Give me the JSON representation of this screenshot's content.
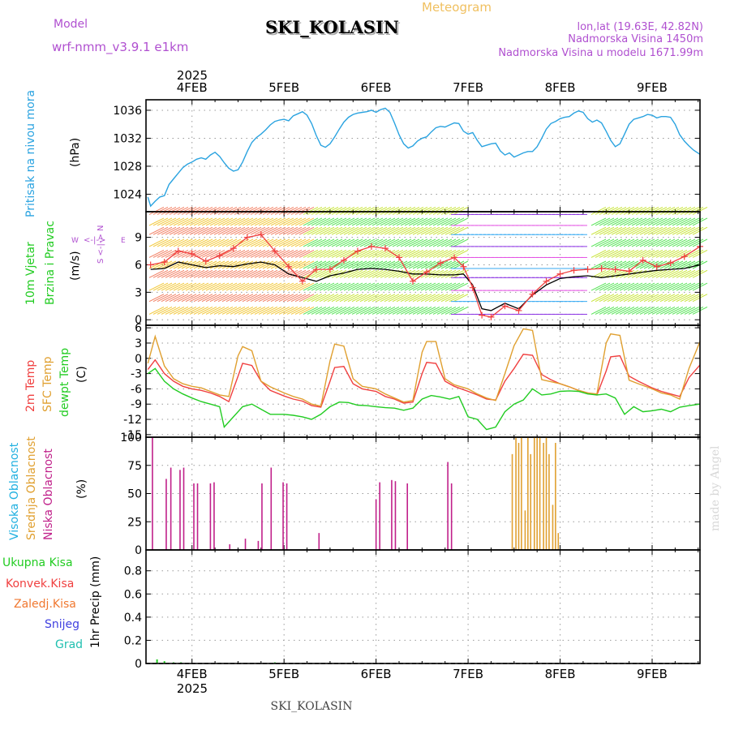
{
  "header": {
    "model_label": "Model",
    "model_name": "wrf-nmm_v3.9.1 e1km",
    "meteogram_label": "Meteogram",
    "station": "SKI_KOLASIN",
    "lonlat": "lon,lat (19.63E, 42.82N)",
    "altitude": "Nadmorska Visina 1450m",
    "model_altitude": "Nadmorska Visina u modelu 1671.99m"
  },
  "footer": {
    "credit": "made by Angel"
  },
  "axis": {
    "year": "2025",
    "dates": [
      "4FEB",
      "5FEB",
      "6FEB",
      "7FEB",
      "8FEB",
      "9FEB"
    ]
  },
  "colors": {
    "pressure": "#2aa3e0",
    "temp_2m": "#f04040",
    "temp_sfc": "#e0a030",
    "dewpt": "#22cc22",
    "cloud_high": "#20b0e0",
    "cloud_mid": "#e0a030",
    "cloud_low": "#c0208a",
    "precip_total": "#22cc22",
    "wind_speed": "#000000",
    "wind_gust": "#f04040",
    "header_magenta": "#b050d0",
    "header_orange": "#f0c060",
    "legend_total": "#22cc22",
    "legend_conv": "#f04040",
    "legend_freezing": "#f07830",
    "legend_snow": "#4040e0",
    "legend_hail": "#20c0b0",
    "watermark": "#d8d8d8"
  },
  "panels": {
    "pressure": {
      "title": "Pritisak na nivou mora",
      "unit": "(hPa)"
    },
    "wind": {
      "title1": "10m Vjetar",
      "title2": "Brzina i Pravac",
      "unit": "(m/s)",
      "compass": {
        "w": "W",
        "e": "E",
        "ns": "S <-|-> N",
        "we": "<-|->"
      }
    },
    "temperature": {
      "title_2m": "2m Temp",
      "title_sfc": "SFC Temp",
      "title_dewpt": "dewpt Temp",
      "unit": "(C)"
    },
    "cloud": {
      "title_high": "Visoka Oblacnost",
      "title_mid": "Srednja Oblacnost",
      "title_low": "Niska Oblacnost",
      "unit": "(%)"
    },
    "precip": {
      "legend_total": "Ukupna Kisa",
      "legend_conv": "Konvek.Kisa",
      "legend_freezing": "Zaledj.Kisa",
      "legend_snow": "Snijeg",
      "legend_hail": "Grad",
      "unit": "1hr Precip (mm)"
    }
  },
  "chart_data": [
    {
      "type": "line",
      "name": "pressure",
      "x_unit": "day of February 2025",
      "xlim": [
        3.5,
        9.52
      ],
      "ylim": [
        1021.5,
        1037.5
      ],
      "yticks": [
        1024,
        1028,
        1032,
        1036
      ],
      "series": [
        {
          "x": [
            3.52,
            3.55,
            3.6,
            3.65,
            3.7,
            3.75,
            3.8,
            3.85,
            3.9,
            3.95,
            4.0,
            4.05,
            4.1,
            4.15,
            4.2,
            4.25,
            4.3,
            4.35,
            4.4,
            4.45,
            4.5,
            4.55,
            4.6,
            4.65,
            4.7,
            4.75,
            4.8,
            4.85,
            4.9,
            4.95,
            5.0,
            5.05,
            5.1,
            5.15,
            5.2,
            5.25,
            5.3,
            5.35,
            5.4,
            5.45,
            5.5,
            5.55,
            5.6,
            5.65,
            5.7,
            5.75,
            5.8,
            5.85,
            5.9,
            5.95,
            6.0,
            6.05,
            6.1,
            6.15,
            6.2,
            6.25,
            6.3,
            6.35,
            6.4,
            6.45,
            6.5,
            6.55,
            6.6,
            6.65,
            6.7,
            6.75,
            6.8,
            6.85,
            6.9,
            6.95,
            7.0,
            7.05,
            7.1,
            7.15,
            7.2,
            7.25,
            7.3,
            7.35,
            7.4,
            7.45,
            7.5,
            7.55,
            7.6,
            7.65,
            7.7,
            7.75,
            7.8,
            7.85,
            7.9,
            7.95,
            8.0,
            8.05,
            8.1,
            8.15,
            8.2,
            8.25,
            8.3,
            8.35,
            8.4,
            8.45,
            8.5,
            8.55,
            8.6,
            8.65,
            8.7,
            8.75,
            8.8,
            8.85,
            8.9,
            8.95,
            9.0,
            9.05,
            9.1,
            9.15,
            9.2,
            9.25,
            9.3,
            9.35,
            9.4,
            9.45,
            9.52
          ],
          "y": [
            1023.6,
            1022.3,
            1023.0,
            1023.6,
            1023.8,
            1025.4,
            1026.2,
            1027.0,
            1027.8,
            1028.3,
            1028.6,
            1029.0,
            1029.2,
            1029.0,
            1029.6,
            1030.0,
            1029.4,
            1028.5,
            1027.7,
            1027.3,
            1027.5,
            1028.6,
            1030.1,
            1031.4,
            1032.1,
            1032.6,
            1033.2,
            1033.9,
            1034.4,
            1034.6,
            1034.7,
            1034.5,
            1035.2,
            1035.5,
            1035.8,
            1035.3,
            1034.1,
            1032.4,
            1031.0,
            1030.7,
            1031.2,
            1032.2,
            1033.3,
            1034.3,
            1035.0,
            1035.4,
            1035.6,
            1035.7,
            1035.8,
            1036.0,
            1035.7,
            1036.1,
            1036.3,
            1035.7,
            1034.2,
            1032.5,
            1031.2,
            1030.6,
            1030.9,
            1031.6,
            1032.0,
            1032.2,
            1032.9,
            1033.5,
            1033.7,
            1033.6,
            1033.9,
            1034.2,
            1034.1,
            1033.0,
            1032.6,
            1032.8,
            1031.7,
            1030.8,
            1031.0,
            1031.2,
            1031.3,
            1030.2,
            1029.6,
            1029.9,
            1029.3,
            1029.6,
            1029.9,
            1030.1,
            1030.1,
            1030.8,
            1032.0,
            1033.3,
            1034.1,
            1034.4,
            1034.8,
            1035.0,
            1035.1,
            1035.6,
            1035.9,
            1035.7,
            1034.8,
            1034.3,
            1034.6,
            1034.2,
            1033.0,
            1031.7,
            1030.8,
            1031.2,
            1032.6,
            1034.0,
            1034.7,
            1034.9,
            1035.1,
            1035.4,
            1035.3,
            1034.9,
            1035.1,
            1035.1,
            1035.0,
            1034.0,
            1032.5,
            1031.6,
            1030.9,
            1030.3,
            1029.7
          ]
        }
      ]
    },
    {
      "type": "line",
      "name": "wind",
      "ylim": [
        -0.6,
        11.8
      ],
      "yticks": [
        0,
        3,
        6,
        9
      ],
      "series": [
        {
          "name": "speed",
          "x": [
            3.55,
            3.7,
            3.85,
            4.0,
            4.15,
            4.3,
            4.45,
            4.6,
            4.75,
            4.9,
            5.05,
            5.2,
            5.35,
            5.5,
            5.65,
            5.8,
            5.95,
            6.1,
            6.25,
            6.4,
            6.55,
            6.7,
            6.85,
            6.95,
            7.05,
            7.15,
            7.25,
            7.4,
            7.55,
            7.7,
            7.85,
            8.0,
            8.15,
            8.3,
            8.45,
            8.6,
            8.75,
            8.9,
            9.05,
            9.2,
            9.35,
            9.52
          ],
          "y": [
            5.5,
            5.6,
            6.3,
            6.0,
            5.7,
            5.9,
            5.8,
            6.1,
            6.3,
            6.0,
            5.0,
            4.6,
            4.2,
            4.8,
            5.1,
            5.5,
            5.6,
            5.5,
            5.3,
            5.0,
            5.0,
            4.9,
            4.9,
            5.0,
            3.8,
            1.2,
            1.0,
            1.8,
            1.2,
            2.7,
            3.8,
            4.5,
            4.7,
            4.8,
            4.6,
            4.8,
            5.0,
            5.2,
            5.4,
            5.5,
            5.6,
            6.0
          ]
        },
        {
          "name": "gust",
          "x": [
            3.55,
            3.7,
            3.85,
            4.0,
            4.15,
            4.3,
            4.45,
            4.6,
            4.75,
            4.9,
            5.05,
            5.2,
            5.35,
            5.5,
            5.65,
            5.8,
            5.95,
            6.1,
            6.25,
            6.4,
            6.55,
            6.7,
            6.85,
            6.95,
            7.05,
            7.15,
            7.25,
            7.4,
            7.55,
            7.7,
            7.85,
            8.0,
            8.15,
            8.3,
            8.45,
            8.6,
            8.75,
            8.9,
            9.05,
            9.2,
            9.35,
            9.52
          ],
          "y": [
            6.0,
            6.3,
            7.5,
            7.2,
            6.4,
            7.0,
            7.8,
            9.0,
            9.3,
            7.5,
            5.8,
            4.2,
            5.5,
            5.5,
            6.5,
            7.5,
            8.0,
            7.8,
            6.8,
            4.2,
            5.2,
            6.2,
            6.8,
            5.8,
            3.5,
            0.5,
            0.3,
            1.5,
            1.0,
            2.8,
            4.2,
            5.0,
            5.4,
            5.5,
            5.6,
            5.5,
            5.3,
            6.5,
            5.8,
            6.2,
            6.9,
            8.0
          ]
        }
      ]
    },
    {
      "type": "line",
      "name": "temperature",
      "ylim": [
        -15.5,
        6.5
      ],
      "yticks": [
        6,
        3,
        0,
        -3,
        -6,
        -9,
        -12,
        -15
      ],
      "series": [
        {
          "name": "2m",
          "x": [
            3.52,
            3.6,
            3.7,
            3.8,
            3.9,
            4.0,
            4.1,
            4.2,
            4.3,
            4.4,
            4.5,
            4.55,
            4.65,
            4.75,
            4.85,
            5.0,
            5.1,
            5.2,
            5.3,
            5.4,
            5.5,
            5.55,
            5.65,
            5.75,
            5.85,
            6.0,
            6.1,
            6.2,
            6.3,
            6.4,
            6.5,
            6.55,
            6.65,
            6.75,
            6.85,
            7.0,
            7.1,
            7.2,
            7.3,
            7.4,
            7.5,
            7.6,
            7.7,
            7.8,
            7.9,
            8.0,
            8.1,
            8.2,
            8.3,
            8.4,
            8.5,
            8.55,
            8.65,
            8.75,
            8.85,
            9.0,
            9.1,
            9.2,
            9.3,
            9.4,
            9.52
          ],
          "y": [
            -2.2,
            -0.3,
            -3.0,
            -4.5,
            -5.5,
            -6.0,
            -6.3,
            -6.8,
            -7.5,
            -8.5,
            -3.5,
            -1.0,
            -1.4,
            -4.5,
            -6.3,
            -7.4,
            -8.0,
            -8.4,
            -9.3,
            -9.6,
            -4.5,
            -1.8,
            -1.6,
            -5.0,
            -6.0,
            -6.5,
            -7.5,
            -8.0,
            -8.8,
            -8.6,
            -3.0,
            -0.8,
            -1.0,
            -4.5,
            -5.5,
            -6.5,
            -7.2,
            -8.0,
            -8.2,
            -4.5,
            -2.0,
            0.8,
            0.6,
            -3.2,
            -4.2,
            -5.0,
            -5.6,
            -6.3,
            -6.8,
            -7.2,
            -2.5,
            0.3,
            0.5,
            -3.5,
            -4.5,
            -5.8,
            -6.5,
            -7.0,
            -7.5,
            -3.8,
            -1.3
          ]
        },
        {
          "name": "sfc",
          "x": [
            3.52,
            3.6,
            3.7,
            3.8,
            3.9,
            4.0,
            4.1,
            4.2,
            4.3,
            4.4,
            4.5,
            4.55,
            4.65,
            4.75,
            4.85,
            5.0,
            5.1,
            5.2,
            5.3,
            5.4,
            5.5,
            5.55,
            5.65,
            5.75,
            5.85,
            6.0,
            6.1,
            6.2,
            6.3,
            6.4,
            6.5,
            6.55,
            6.65,
            6.75,
            6.85,
            7.0,
            7.1,
            7.2,
            7.3,
            7.4,
            7.5,
            7.6,
            7.7,
            7.8,
            7.9,
            8.0,
            8.1,
            8.2,
            8.3,
            8.4,
            8.5,
            8.55,
            8.65,
            8.75,
            8.85,
            9.0,
            9.1,
            9.2,
            9.3,
            9.4,
            9.52
          ],
          "y": [
            -1.0,
            4.3,
            -1.5,
            -4.0,
            -5.0,
            -5.5,
            -5.8,
            -6.5,
            -7.2,
            -7.5,
            0.5,
            2.3,
            1.5,
            -4.5,
            -5.6,
            -6.8,
            -7.5,
            -8.0,
            -9.0,
            -9.4,
            -0.5,
            2.8,
            2.4,
            -4.0,
            -5.5,
            -6.0,
            -7.0,
            -7.8,
            -8.6,
            -8.3,
            1.2,
            3.3,
            3.3,
            -4.0,
            -5.2,
            -6.0,
            -7.0,
            -7.8,
            -8.3,
            -3.0,
            2.5,
            5.8,
            5.5,
            -4.2,
            -4.6,
            -5.0,
            -5.6,
            -6.3,
            -6.8,
            -7.0,
            3.0,
            4.8,
            4.5,
            -4.3,
            -5.0,
            -6.0,
            -6.8,
            -7.2,
            -8.0,
            -2.0,
            3.3
          ]
        },
        {
          "name": "dewpt",
          "x": [
            3.52,
            3.6,
            3.7,
            3.8,
            3.9,
            4.0,
            4.1,
            4.2,
            4.3,
            4.35,
            4.45,
            4.55,
            4.65,
            4.75,
            4.85,
            5.0,
            5.1,
            5.2,
            5.3,
            5.4,
            5.5,
            5.6,
            5.7,
            5.8,
            5.9,
            6.0,
            6.1,
            6.2,
            6.3,
            6.4,
            6.5,
            6.6,
            6.7,
            6.8,
            6.9,
            7.0,
            7.1,
            7.2,
            7.3,
            7.4,
            7.5,
            7.6,
            7.7,
            7.8,
            7.9,
            8.0,
            8.1,
            8.2,
            8.3,
            8.4,
            8.5,
            8.6,
            8.7,
            8.8,
            8.9,
            9.0,
            9.1,
            9.2,
            9.3,
            9.4,
            9.52
          ],
          "y": [
            -3.0,
            -2.0,
            -4.5,
            -6.0,
            -7.0,
            -7.8,
            -8.5,
            -9.0,
            -9.5,
            -13.5,
            -11.5,
            -9.5,
            -9.0,
            -10.0,
            -11.0,
            -11.0,
            -11.2,
            -11.5,
            -12.0,
            -11.0,
            -9.5,
            -8.6,
            -8.7,
            -9.2,
            -9.3,
            -9.5,
            -9.7,
            -9.8,
            -10.2,
            -9.8,
            -8.0,
            -7.3,
            -7.6,
            -8.0,
            -7.5,
            -11.5,
            -12.0,
            -14.0,
            -13.5,
            -10.5,
            -9.0,
            -8.2,
            -6.0,
            -7.2,
            -7.0,
            -6.5,
            -6.4,
            -6.5,
            -7.0,
            -7.2,
            -7.0,
            -7.8,
            -11.0,
            -9.5,
            -10.5,
            -10.3,
            -10.0,
            -10.5,
            -9.6,
            -9.3,
            -9.0
          ]
        }
      ]
    },
    {
      "type": "bar",
      "name": "cloud",
      "ylim": [
        0,
        100
      ],
      "yticks": [
        0,
        25,
        50,
        75,
        100
      ],
      "series": [
        {
          "name": "low",
          "x": [
            3.57,
            3.72,
            3.77,
            3.87,
            3.91,
            4.02,
            4.06,
            4.2,
            4.24,
            4.41,
            4.58,
            4.72,
            4.76,
            4.86,
            4.99,
            5.03,
            5.38,
            6.0,
            6.04,
            6.17,
            6.21,
            6.34,
            6.78,
            6.82
          ],
          "y": [
            100,
            63,
            73,
            71,
            73,
            59,
            59,
            59,
            60,
            5,
            10,
            8,
            59,
            73,
            60,
            59,
            15,
            45,
            60,
            62,
            61,
            59,
            78,
            59
          ]
        },
        {
          "name": "mid",
          "x": [
            7.48,
            7.52,
            7.55,
            7.58,
            7.62,
            7.65,
            7.68,
            7.72,
            7.75,
            7.78,
            7.82,
            7.85,
            7.88,
            7.92,
            7.95,
            7.98
          ],
          "y": [
            85,
            100,
            95,
            100,
            35,
            100,
            85,
            100,
            100,
            100,
            95,
            100,
            85,
            40,
            95,
            15
          ]
        }
      ]
    },
    {
      "type": "bar",
      "name": "precipitation",
      "ylim": [
        0,
        0.98
      ],
      "yticks": [
        0,
        0.2,
        0.4,
        0.6,
        0.8
      ],
      "series": [
        {
          "name": "total",
          "x": [
            3.62,
            3.7,
            3.8,
            3.88,
            4.3,
            4.9
          ],
          "y": [
            0.035,
            0.02,
            0.01,
            0.01,
            0.006,
            0.01
          ]
        }
      ]
    }
  ]
}
